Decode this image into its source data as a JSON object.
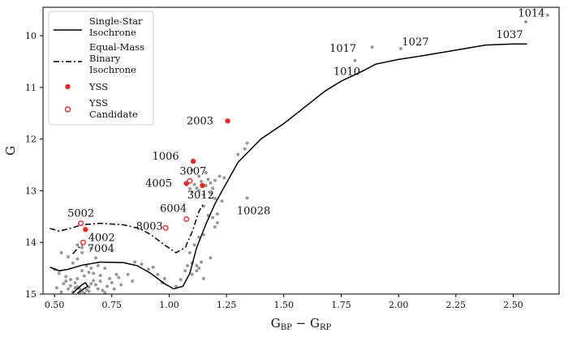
{
  "chart_data": {
    "type": "scatter",
    "xlabel_main": "G",
    "xlabel_sub1": "BP",
    "xlabel_mid": " − G",
    "xlabel_sub2": "RP",
    "ylabel": "G",
    "xlim": [
      0.45,
      2.7
    ],
    "ylim": [
      15.0,
      9.45
    ],
    "xticks": [
      0.5,
      0.75,
      1.0,
      1.25,
      1.5,
      1.75,
      2.0,
      2.25,
      2.5
    ],
    "xtick_labels": [
      "0.50",
      "0.75",
      "1.00",
      "1.25",
      "1.50",
      "1.75",
      "2.00",
      "2.25",
      "2.50"
    ],
    "yticks": [
      10,
      11,
      12,
      13,
      14,
      15
    ],
    "ytick_labels": [
      "10",
      "11",
      "12",
      "13",
      "14",
      "15"
    ],
    "colors": {
      "isochrone": "#000000",
      "yss": "#e8282a",
      "field": "#999999"
    },
    "legend": {
      "position": "top-left",
      "single_star": [
        "Single-Star",
        "Isochrone"
      ],
      "binary": [
        "Equal-Mass",
        "Binary",
        "Isochrone"
      ],
      "yss": [
        "YSS"
      ],
      "yss_candidate": [
        "YSS",
        "Candidate"
      ]
    },
    "single_star_isochrone": [
      [
        0.48,
        14.48
      ],
      [
        0.52,
        14.55
      ],
      [
        0.56,
        14.52
      ],
      [
        0.62,
        14.44
      ],
      [
        0.7,
        14.38
      ],
      [
        0.8,
        14.39
      ],
      [
        0.86,
        14.45
      ],
      [
        0.92,
        14.6
      ],
      [
        0.98,
        14.8
      ],
      [
        1.02,
        14.9
      ],
      [
        1.06,
        14.85
      ],
      [
        1.09,
        14.6
      ],
      [
        1.12,
        14.1
      ],
      [
        1.16,
        13.65
      ],
      [
        1.2,
        13.25
      ],
      [
        1.25,
        12.85
      ],
      [
        1.3,
        12.45
      ],
      [
        1.4,
        12.0
      ],
      [
        1.5,
        11.7
      ],
      [
        1.6,
        11.35
      ],
      [
        1.68,
        11.07
      ],
      [
        1.75,
        10.88
      ],
      [
        1.85,
        10.67
      ],
      [
        1.9,
        10.55
      ],
      [
        2.0,
        10.46
      ],
      [
        2.1,
        10.39
      ],
      [
        2.25,
        10.28
      ],
      [
        2.38,
        10.18
      ],
      [
        2.5,
        10.16
      ],
      [
        2.56,
        10.16
      ]
    ],
    "single_star_hook": [
      [
        0.58,
        14.98
      ],
      [
        0.6,
        14.9
      ],
      [
        0.62,
        14.82
      ],
      [
        0.635,
        14.78
      ],
      [
        0.645,
        14.85
      ],
      [
        0.62,
        14.92
      ],
      [
        0.6,
        14.98
      ]
    ],
    "binary_isochrone": [
      [
        0.48,
        13.73
      ],
      [
        0.52,
        13.78
      ],
      [
        0.56,
        13.74
      ],
      [
        0.62,
        13.66
      ],
      [
        0.7,
        13.63
      ],
      [
        0.8,
        13.66
      ],
      [
        0.87,
        13.73
      ],
      [
        0.92,
        13.85
      ],
      [
        0.98,
        14.05
      ],
      [
        1.03,
        14.2
      ],
      [
        1.07,
        14.1
      ],
      [
        1.1,
        13.8
      ],
      [
        1.13,
        13.4
      ],
      [
        1.15,
        13.25
      ]
    ],
    "binary_hook": [
      [
        0.58,
        14.22
      ],
      [
        0.6,
        14.12
      ],
      [
        0.62,
        14.05
      ]
    ],
    "yss": [
      {
        "id": "2003",
        "x": 1.255,
        "y": 11.65,
        "label_dx": -34,
        "label_dy": 0
      },
      {
        "id": "1006",
        "x": 1.105,
        "y": 12.43,
        "label_dx": -34,
        "label_dy": -6
      },
      {
        "id": "4005",
        "x": 1.075,
        "y": 12.86,
        "label_dx": -34,
        "label_dy": 0
      },
      {
        "id": "3012",
        "x": 1.145,
        "y": 12.9,
        "label_dx": -2,
        "label_dy": 12
      },
      {
        "id": "4002",
        "x": 0.635,
        "y": 13.75,
        "label_dx": 20,
        "label_dy": 10
      }
    ],
    "yss_candidates": [
      {
        "id": "3007",
        "x": 1.09,
        "y": 12.81,
        "label_dx": 4,
        "label_dy": -12
      },
      {
        "id": "6004",
        "x": 1.075,
        "y": 13.55,
        "label_dx": -16,
        "label_dy": -13
      },
      {
        "id": "8003",
        "x": 0.985,
        "y": 13.72,
        "label_dx": -20,
        "label_dy": -2
      },
      {
        "id": "5002",
        "x": 0.615,
        "y": 13.63,
        "label_dx": 0,
        "label_dy": -12
      },
      {
        "id": "7004",
        "x": 0.625,
        "y": 14.0,
        "label_dx": 22,
        "label_dy": 8
      }
    ],
    "annotated_field": [
      {
        "id": "1014",
        "x": 2.65,
        "y": 9.6,
        "label_dx": -20,
        "label_dy": -2
      },
      {
        "id": "1037",
        "x": 2.555,
        "y": 9.73,
        "label_dx": -20,
        "label_dy": 16
      },
      {
        "id": "1017",
        "x": 1.885,
        "y": 10.22,
        "label_dx": -36,
        "label_dy": 2
      },
      {
        "id": "1027",
        "x": 2.01,
        "y": 10.25,
        "label_dx": 18,
        "label_dy": -8
      },
      {
        "id": "1010",
        "x": 1.81,
        "y": 10.48,
        "label_dx": -10,
        "label_dy": 14
      },
      {
        "id": "10028",
        "x": 1.34,
        "y": 13.14,
        "label_dx": 8,
        "label_dy": 16
      }
    ],
    "field_stars": [
      [
        1.34,
        12.08
      ],
      [
        1.33,
        12.19
      ],
      [
        1.3,
        12.3
      ],
      [
        1.22,
        12.72
      ],
      [
        1.2,
        12.8
      ],
      [
        1.24,
        12.75
      ],
      [
        1.18,
        12.85
      ],
      [
        1.19,
        12.95
      ],
      [
        1.16,
        12.9
      ],
      [
        1.17,
        12.78
      ],
      [
        1.14,
        12.82
      ],
      [
        1.12,
        12.95
      ],
      [
        1.11,
        12.88
      ],
      [
        1.13,
        13.0
      ],
      [
        1.15,
        13.08
      ],
      [
        1.18,
        13.05
      ],
      [
        1.2,
        13.15
      ],
      [
        1.23,
        13.2
      ],
      [
        1.21,
        13.45
      ],
      [
        1.19,
        13.52
      ],
      [
        1.17,
        13.48
      ],
      [
        1.15,
        13.3
      ],
      [
        1.1,
        13.02
      ],
      [
        1.09,
        12.96
      ],
      [
        1.13,
        12.72
      ],
      [
        1.16,
        12.65
      ],
      [
        1.1,
        12.6
      ],
      [
        1.21,
        13.62
      ],
      [
        1.2,
        13.7
      ],
      [
        1.15,
        13.85
      ],
      [
        1.13,
        13.9
      ],
      [
        1.11,
        14.05
      ],
      [
        1.09,
        14.2
      ],
      [
        1.08,
        14.45
      ],
      [
        1.1,
        14.4
      ],
      [
        1.07,
        14.55
      ],
      [
        1.1,
        14.62
      ],
      [
        1.05,
        14.72
      ],
      [
        0.98,
        14.7
      ],
      [
        0.95,
        14.62
      ],
      [
        1.03,
        14.85
      ],
      [
        1.12,
        14.55
      ],
      [
        1.14,
        14.38
      ],
      [
        1.12,
        14.45
      ],
      [
        0.91,
        14.52
      ],
      [
        0.88,
        14.42
      ],
      [
        0.93,
        14.48
      ],
      [
        0.85,
        14.38
      ],
      [
        0.82,
        14.62
      ],
      [
        0.78,
        14.68
      ],
      [
        0.7,
        14.75
      ],
      [
        0.72,
        14.5
      ],
      [
        0.68,
        14.3
      ],
      [
        0.66,
        14.12
      ],
      [
        0.62,
        14.2
      ],
      [
        0.6,
        14.32
      ],
      [
        0.58,
        14.4
      ],
      [
        0.56,
        14.28
      ],
      [
        0.53,
        14.2
      ],
      [
        0.5,
        14.52
      ],
      [
        0.52,
        14.6
      ],
      [
        0.55,
        14.66
      ],
      [
        0.57,
        14.72
      ],
      [
        0.59,
        14.78
      ],
      [
        0.6,
        14.86
      ],
      [
        0.61,
        14.9
      ],
      [
        0.62,
        14.95
      ],
      [
        0.63,
        14.98
      ],
      [
        0.64,
        14.92
      ],
      [
        0.65,
        14.86
      ],
      [
        0.66,
        14.8
      ],
      [
        0.67,
        14.74
      ],
      [
        0.68,
        14.82
      ],
      [
        0.69,
        14.9
      ],
      [
        0.71,
        14.93
      ],
      [
        0.73,
        14.85
      ],
      [
        0.75,
        14.78
      ],
      [
        0.76,
        14.9
      ],
      [
        0.79,
        14.82
      ],
      [
        0.54,
        14.8
      ],
      [
        0.56,
        14.9
      ],
      [
        0.58,
        14.96
      ],
      [
        0.61,
        14.98
      ],
      [
        0.59,
        14.88
      ],
      [
        0.57,
        14.84
      ],
      [
        0.55,
        14.75
      ],
      [
        0.6,
        14.7
      ],
      [
        0.63,
        14.65
      ],
      [
        0.65,
        14.58
      ],
      [
        0.67,
        14.6
      ],
      [
        0.7,
        14.64
      ],
      [
        0.74,
        14.7
      ],
      [
        0.77,
        14.62
      ],
      [
        0.62,
        14.55
      ],
      [
        0.64,
        14.45
      ],
      [
        0.66,
        14.5
      ],
      [
        0.69,
        14.45
      ],
      [
        0.53,
        14.96
      ],
      [
        0.51,
        14.88
      ],
      [
        0.65,
        14.95
      ],
      [
        0.72,
        14.97
      ],
      [
        1.13,
        14.5
      ],
      [
        1.18,
        14.3
      ],
      [
        1.15,
        14.7
      ],
      [
        0.97,
        14.78
      ],
      [
        0.84,
        14.75
      ],
      [
        0.62,
        14.1
      ],
      [
        0.6,
        14.05
      ]
    ]
  }
}
